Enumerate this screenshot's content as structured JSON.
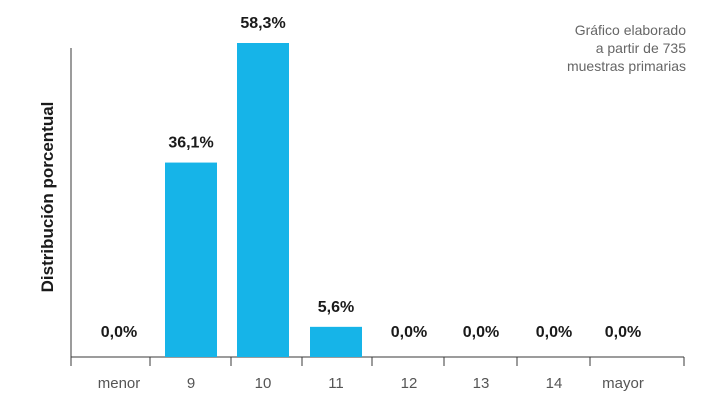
{
  "chart_data": {
    "type": "bar",
    "categories": [
      "menor",
      "9",
      "10",
      "11",
      "12",
      "13",
      "14",
      "mayor"
    ],
    "values": [
      0.0,
      36.1,
      58.3,
      5.6,
      0.0,
      0.0,
      0.0,
      0.0
    ],
    "data_labels": [
      "0,0%",
      "36,1%",
      "58,3%",
      "5,6%",
      "0,0%",
      "0,0%",
      "0,0%",
      "0,0%"
    ],
    "ylabel": "Distribución porcentual",
    "xlabel": "",
    "ylim": [
      0,
      60
    ],
    "grid": false,
    "colors": {
      "bar": "#16b4e8"
    },
    "annotation": [
      "Gráfico elaborado",
      "a partir de 735",
      "muestras primarias"
    ]
  }
}
